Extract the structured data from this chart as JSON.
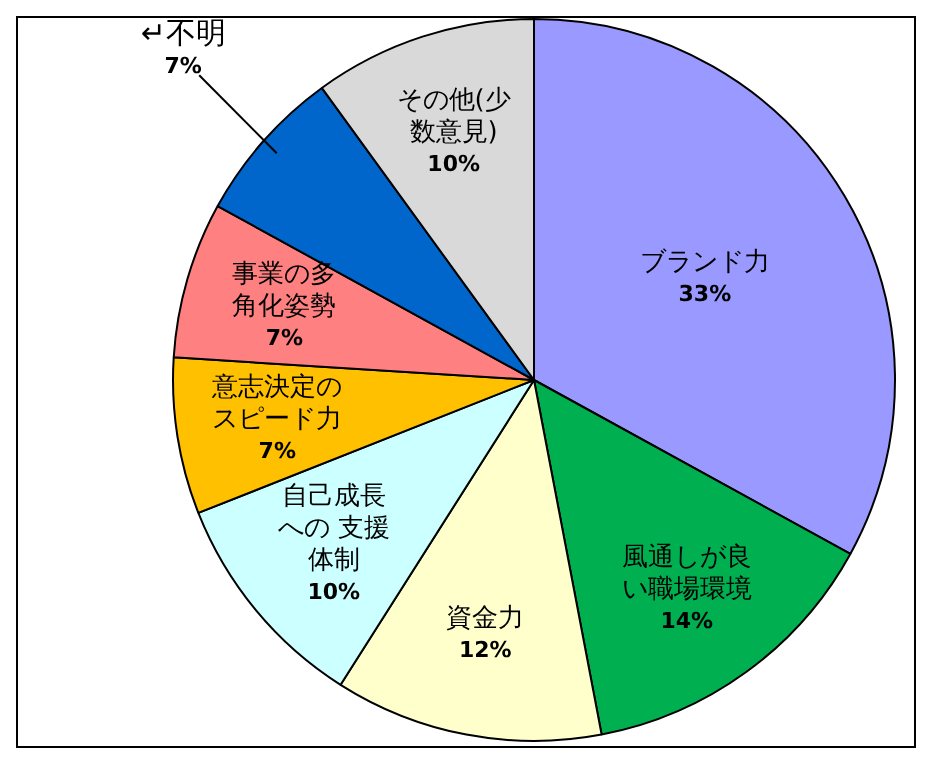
{
  "chart_data": {
    "type": "pie",
    "categories": [
      "ブランド力",
      "風通しが良い職場環境",
      "資金力",
      "自己成長への 支援体制",
      "意志決定のスピード力",
      "事業の多角化姿勢",
      "↵不明",
      "その他(少数意見)"
    ],
    "values": [
      33,
      14,
      12,
      10,
      7,
      7,
      7,
      10
    ],
    "colors": [
      "#9999ff",
      "#00b050",
      "#ffffcc",
      "#ccffff",
      "#ffc000",
      "#ff8080",
      "#0066cc",
      "#d9d9d9"
    ],
    "value_labels": [
      "33%",
      "14%",
      "12%",
      "10%",
      "7%",
      "7%",
      "7%",
      "10%"
    ],
    "legend": false
  }
}
